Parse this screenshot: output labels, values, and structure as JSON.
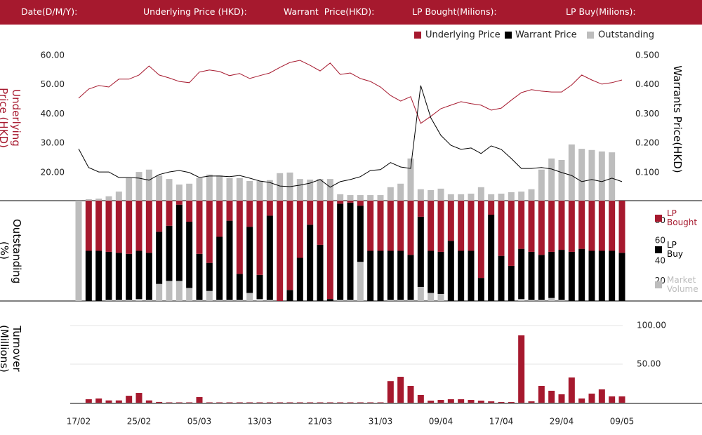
{
  "header": {
    "fields": [
      "Date(D/M/Y):",
      "Underlying Price (HKD):",
      "Warrant  Price(HKD):",
      "LP Bought(Milions):",
      "LP Buy(Milions):"
    ]
  },
  "chart_data": [
    {
      "type": "line",
      "ylabel": "Underlying Price (HKD)",
      "y2label": "Warrants  Price(HKD)",
      "ylim": [
        10.4,
        62
      ],
      "yticks": [
        {
          "value": 20,
          "label": "20.00"
        },
        {
          "value": 30,
          "label": "30.00"
        },
        {
          "value": 40,
          "label": "40.00"
        },
        {
          "value": 50,
          "label": "50.00"
        },
        {
          "value": 60,
          "label": "60.00"
        }
      ],
      "y2lim": [
        0.004,
        0.52
      ],
      "y2ticks": [
        {
          "value": 0.1,
          "label": "0.100"
        },
        {
          "value": 0.2,
          "label": "0.200"
        },
        {
          "value": 0.3,
          "label": "0.300"
        },
        {
          "value": 0.4,
          "label": "0.400"
        },
        {
          "value": 0.5,
          "label": "0.500"
        }
      ],
      "series": [
        {
          "name": "Underlying Price",
          "color": "#a6192e",
          "values": [
            45.4,
            48.5,
            49.7,
            49.2,
            51.9,
            51.9,
            53.3,
            56.4,
            53.3,
            52.3,
            51.1,
            50.7,
            54.3,
            55.0,
            54.5,
            53.1,
            53.8,
            52.1,
            53.1,
            54.0,
            55.9,
            57.6,
            58.3,
            56.6,
            54.7,
            57.4,
            53.5,
            54.0,
            52.1,
            51.1,
            49.2,
            46.3,
            44.4,
            45.9,
            36.8,
            39.2,
            41.8,
            43.0,
            44.2,
            43.5,
            43.0,
            41.3,
            42.0,
            44.7,
            47.3,
            48.3,
            47.8,
            47.5,
            47.5,
            49.9,
            53.3,
            51.6,
            50.2,
            50.7,
            51.6
          ]
        },
        {
          "name": "Warrant  Price",
          "color": "#000000",
          "axis": "y2",
          "values": [
            0.181,
            0.117,
            0.102,
            0.102,
            0.083,
            0.083,
            0.081,
            0.074,
            0.093,
            0.102,
            0.107,
            0.1,
            0.083,
            0.088,
            0.088,
            0.086,
            0.09,
            0.081,
            0.071,
            0.066,
            0.054,
            0.052,
            0.057,
            0.064,
            0.076,
            0.05,
            0.069,
            0.076,
            0.086,
            0.107,
            0.11,
            0.134,
            0.119,
            0.114,
            0.397,
            0.287,
            0.227,
            0.193,
            0.179,
            0.184,
            0.165,
            0.191,
            0.179,
            0.148,
            0.114,
            0.114,
            0.117,
            0.112,
            0.1,
            0.09,
            0.069,
            0.076,
            0.069,
            0.081,
            0.069
          ]
        },
        {
          "name": "Outstanding",
          "color": "#bdbdbd",
          "type": "bar",
          "values": [
            null,
            10.9,
            11.1,
            11.9,
            13.5,
            18.1,
            20.2,
            21.0,
            19.0,
            17.8,
            15.9,
            16.2,
            18.1,
            19.3,
            19.0,
            18.1,
            18.1,
            17.1,
            17.1,
            17.4,
            19.8,
            20.0,
            17.8,
            17.6,
            17.8,
            17.8,
            12.6,
            12.3,
            12.3,
            12.3,
            12.3,
            15.0,
            16.2,
            24.8,
            14.3,
            14.0,
            14.5,
            12.6,
            12.6,
            12.8,
            15.0,
            12.6,
            12.8,
            13.3,
            13.5,
            14.3,
            21.0,
            24.8,
            24.3,
            29.6,
            28.1,
            27.7,
            27.2,
            26.9,
            null
          ]
        }
      ]
    },
    {
      "type": "stacked_bar",
      "ylabel": "Outstanding (%)",
      "ylim": [
        0,
        100
      ],
      "yticks": [
        20,
        40,
        60,
        80
      ],
      "series": [
        {
          "name": "LP Bought",
          "color": "#a6192e",
          "values": [
            0,
            50,
            50,
            51,
            52,
            53,
            50,
            52,
            31,
            25,
            4,
            21,
            53,
            62,
            36,
            20,
            73,
            26,
            74,
            15,
            100,
            89,
            57,
            24,
            44,
            98,
            3,
            2,
            5,
            50,
            50,
            50,
            50,
            54,
            16,
            50,
            51,
            40,
            50,
            50,
            77,
            14,
            55,
            65,
            48,
            51,
            54,
            51,
            49,
            51,
            48,
            50,
            50,
            50,
            52
          ]
        },
        {
          "name": "LP Buy",
          "color": "#000000",
          "values": [
            0,
            50,
            50,
            48,
            47,
            46,
            48,
            47,
            52,
            55,
            76,
            66,
            46,
            28,
            63,
            79,
            26,
            66,
            24,
            84,
            0,
            11,
            43,
            76,
            56,
            2,
            96,
            97,
            56,
            50,
            50,
            49,
            49,
            45,
            70,
            42,
            42,
            60,
            50,
            50,
            23,
            86,
            45,
            35,
            50,
            48,
            45,
            46,
            50,
            49,
            52,
            50,
            50,
            50,
            48
          ]
        },
        {
          "name": "Market Volume",
          "color": "#bdbdbd",
          "values": [
            100,
            0,
            0,
            1,
            1,
            1,
            2,
            1,
            17,
            20,
            20,
            13,
            1,
            10,
            1,
            1,
            1,
            8,
            2,
            1,
            0,
            0,
            0,
            0,
            0,
            0,
            1,
            1,
            39,
            0,
            0,
            1,
            1,
            1,
            14,
            8,
            7,
            0,
            0,
            0,
            0,
            0,
            0,
            0,
            2,
            1,
            1,
            3,
            1,
            0,
            0,
            0,
            0,
            0,
            0
          ]
        }
      ]
    },
    {
      "type": "bar",
      "ylabel": "Turnover (Millions)",
      "color": "#a6192e",
      "grid": true,
      "ylim": [
        0,
        108
      ],
      "yticks": [
        {
          "value": 50,
          "label": "50.00"
        },
        {
          "value": 100,
          "label": "100.00"
        }
      ],
      "categories": [
        "17/02",
        null,
        null,
        null,
        null,
        null,
        "25/02",
        null,
        null,
        null,
        null,
        null,
        "05/03",
        null,
        null,
        null,
        null,
        null,
        "13/03",
        null,
        null,
        null,
        null,
        null,
        "21/03",
        null,
        null,
        null,
        null,
        null,
        "31/03",
        null,
        null,
        null,
        null,
        null,
        "09/04",
        null,
        null,
        null,
        null,
        null,
        "17/04",
        null,
        null,
        null,
        null,
        null,
        "29/04",
        null,
        null,
        null,
        null,
        null,
        "09/05"
      ],
      "values": [
        0,
        4.5,
        5.5,
        3,
        3,
        9,
        12.7,
        3,
        1,
        0.5,
        0.5,
        0.5,
        7.3,
        0.5,
        0.5,
        0.5,
        0.5,
        0.5,
        0.5,
        0.5,
        0.5,
        0.5,
        0.5,
        0.5,
        0.5,
        0.5,
        0.5,
        0.5,
        0.5,
        0.5,
        0.5,
        28,
        33.6,
        21.8,
        10,
        2.7,
        3.6,
        4.5,
        4.5,
        3.6,
        2.7,
        1.8,
        0.9,
        0.9,
        87.3,
        1.8,
        21.8,
        15.5,
        10.9,
        32.7,
        5.5,
        11.8,
        17.3,
        8.2,
        8.2
      ]
    }
  ]
}
